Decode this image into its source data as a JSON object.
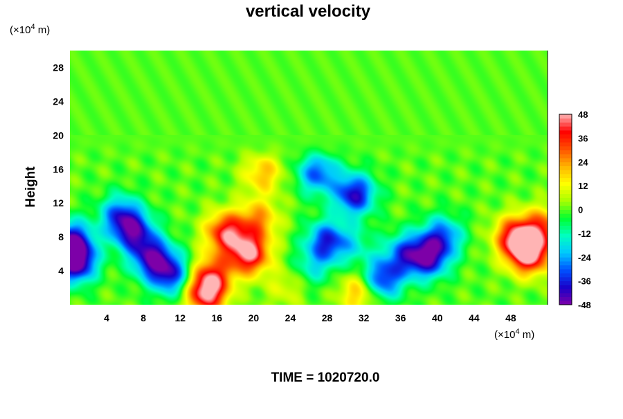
{
  "chart_data": {
    "type": "heatmap",
    "title": "vertical velocity",
    "ylabel": "Height",
    "xlabel": "",
    "y_unit": "(×10",
    "x_unit": "(×10",
    "unit_exponent": "4",
    "unit_suffix": " m)",
    "x_ticks": [
      "4",
      "8",
      "12",
      "16",
      "20",
      "24",
      "28",
      "32",
      "36",
      "40",
      "44",
      "48"
    ],
    "x_tick_values": [
      4,
      8,
      12,
      16,
      20,
      24,
      28,
      32,
      36,
      40,
      44,
      48
    ],
    "y_ticks": [
      "4",
      "8",
      "12",
      "16",
      "20",
      "24",
      "28"
    ],
    "y_tick_values": [
      4,
      8,
      12,
      16,
      20,
      24,
      28
    ],
    "xlim": [
      0,
      52
    ],
    "ylim": [
      0,
      30
    ],
    "colorbar": {
      "range": [
        -48,
        48
      ],
      "tick_labels": [
        "48",
        "36",
        "24",
        "12",
        "0",
        "-12",
        "-24",
        "-36",
        "-48"
      ],
      "tick_values": [
        48,
        36,
        24,
        12,
        0,
        -12,
        -24,
        -36,
        -48
      ],
      "palette": [
        "#7d00a8",
        "#1a00c8",
        "#0050ff",
        "#00c8ff",
        "#00ffc0",
        "#00ff30",
        "#a8ff00",
        "#ffff00",
        "#ffb400",
        "#ff5000",
        "#ff0000",
        "#ffb4b4"
      ]
    },
    "features": [
      {
        "x": 0.6,
        "y": 5.0,
        "w": -48
      },
      {
        "x": 0.2,
        "y": 7.5,
        "w": -40
      },
      {
        "x": 9.0,
        "y": 5.5,
        "w": -40
      },
      {
        "x": 7.0,
        "y": 8.5,
        "w": -36
      },
      {
        "x": 5.5,
        "y": 10.5,
        "w": -30
      },
      {
        "x": 11.0,
        "y": 3.5,
        "w": -34
      },
      {
        "x": 19.5,
        "y": 6.0,
        "w": 46
      },
      {
        "x": 17.0,
        "y": 8.5,
        "w": 40
      },
      {
        "x": 15.5,
        "y": 3.5,
        "w": 30
      },
      {
        "x": 14.8,
        "y": 1.2,
        "w": 42
      },
      {
        "x": 20.5,
        "y": 10.0,
        "w": 24
      },
      {
        "x": 21.0,
        "y": 15.5,
        "w": 20
      },
      {
        "x": 28.0,
        "y": 7.5,
        "w": -34
      },
      {
        "x": 26.5,
        "y": 4.5,
        "w": -14
      },
      {
        "x": 31.0,
        "y": 13.0,
        "w": -40
      },
      {
        "x": 27.0,
        "y": 15.5,
        "w": -30
      },
      {
        "x": 34.0,
        "y": 3.0,
        "w": -36
      },
      {
        "x": 36.5,
        "y": 6.0,
        "w": -28
      },
      {
        "x": 39.0,
        "y": 5.5,
        "w": -38
      },
      {
        "x": 40.5,
        "y": 8.0,
        "w": -30
      },
      {
        "x": 31.0,
        "y": 7.0,
        "w": -12
      },
      {
        "x": 50.0,
        "y": 6.0,
        "w": 48
      },
      {
        "x": 48.5,
        "y": 8.0,
        "w": 40
      },
      {
        "x": 51.5,
        "y": 9.0,
        "w": 30
      },
      {
        "x": 31.5,
        "y": 1.5,
        "w": 22
      },
      {
        "x": 23.5,
        "y": 2.0,
        "w": 10
      }
    ]
  },
  "footer": {
    "time_label": "TIME = 1020720.0"
  }
}
